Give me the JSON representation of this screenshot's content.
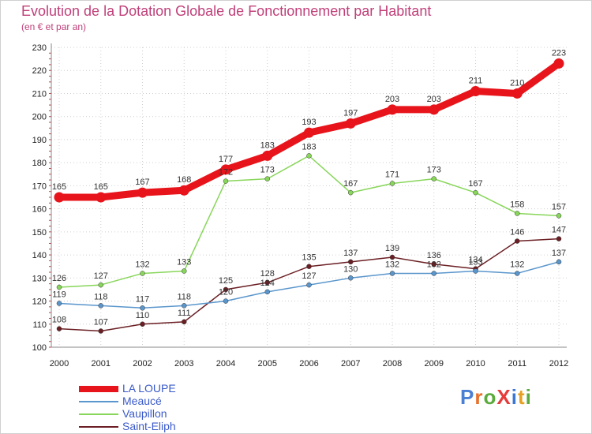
{
  "title": "Evolution de la Dotation Globale de Fonctionnement par Habitant",
  "subtitle": "(en € et par an)",
  "logo": {
    "text": "ProXiti",
    "letter_colors": [
      "#4a7fd4",
      "#e8702a",
      "#5aaa3c",
      "#e83a3a",
      "#3a78d4",
      "#e8a020",
      "#5aaa3c"
    ]
  },
  "chart_data": {
    "type": "line",
    "title": "Evolution de la Dotation Globale de Fonctionnement par Habitant",
    "subtitle": "(en € et par an)",
    "xlabel": "",
    "ylabel": "",
    "ylim": [
      100,
      230
    ],
    "yticks": [
      100,
      110,
      120,
      130,
      140,
      150,
      160,
      170,
      180,
      190,
      200,
      210,
      220,
      230
    ],
    "x": [
      "2000",
      "2001",
      "2002",
      "2003",
      "2004",
      "2005",
      "2006",
      "2007",
      "2008",
      "2009",
      "2010",
      "2011",
      "2012"
    ],
    "grid": true,
    "legend_position": "bottom-left",
    "series": [
      {
        "name": "LA LOUPE",
        "color": "#e8141b",
        "values": [
          165,
          165,
          167,
          168,
          177,
          183,
          193,
          197,
          203,
          203,
          211,
          210,
          223
        ]
      },
      {
        "name": "Meaucé",
        "color": "#5a96cc",
        "values": [
          119,
          118,
          117,
          118,
          120,
          124,
          127,
          130,
          132,
          132,
          133,
          132,
          137
        ]
      },
      {
        "name": "Vaupillon",
        "color": "#88d65a",
        "values": [
          126,
          127,
          132,
          133,
          172,
          173,
          183,
          167,
          171,
          173,
          167,
          158,
          157
        ]
      },
      {
        "name": "Saint-Eliph",
        "color": "#6b1f24",
        "values": [
          108,
          107,
          110,
          111,
          125,
          128,
          135,
          137,
          139,
          136,
          134,
          146,
          147
        ]
      }
    ]
  }
}
